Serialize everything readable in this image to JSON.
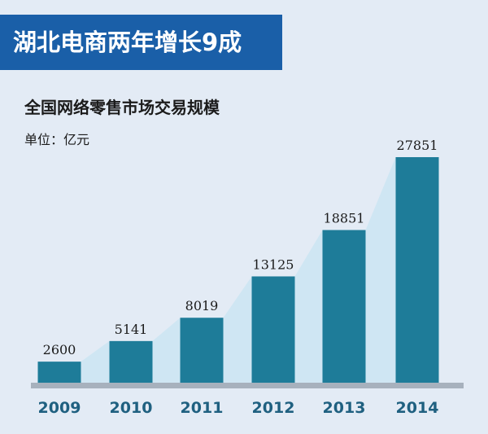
{
  "header": {
    "banner_title": "湖北电商两年增长9成",
    "chart_title": "全国网络零售市场交易规模",
    "unit_label": "单位：亿元"
  },
  "colors": {
    "banner": "#1a5fa8",
    "bar": "#1e7c99",
    "area": "#cfe6f3",
    "axis": "#a7b1bd",
    "tick_text": "#1f6080",
    "value_text": "#1b1b1b",
    "background": "#e3ebf5"
  },
  "chart_data": {
    "type": "bar",
    "title": "全国网络零售市场交易规模",
    "ylabel": "单位：亿元",
    "xlabel": "",
    "categories": [
      "2009",
      "2010",
      "2011",
      "2012",
      "2013",
      "2014"
    ],
    "values": [
      2600,
      5141,
      8019,
      13125,
      18851,
      27851
    ],
    "data_labels": [
      "2600",
      "5141",
      "8019",
      "13125",
      "18851",
      "27851"
    ],
    "ylim": [
      0,
      27851
    ],
    "grid": false,
    "legend": "none",
    "trend_area": true
  }
}
